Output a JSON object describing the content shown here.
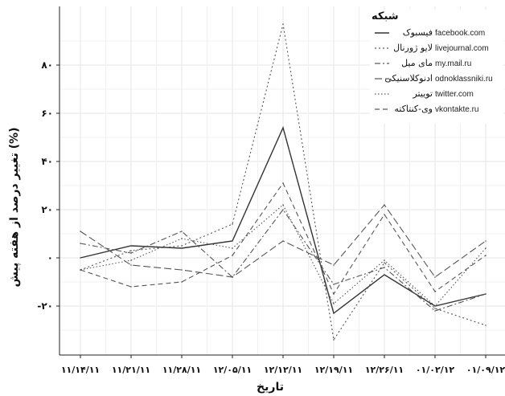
{
  "chart_data": {
    "type": "line",
    "ylabel": "تغییر درصد از هفته پیش (%)",
    "xlabel": "تاریخ",
    "ylim": [
      -40,
      98
    ],
    "yticks": [
      -20,
      0,
      20,
      40,
      60,
      80
    ],
    "ytick_labels": [
      "-۲۰",
      "۰",
      "۲۰",
      "۴۰",
      "۶۰",
      "۸۰"
    ],
    "categories": [
      "۱۱/۱۴/۱۱",
      "۱۱/۲۱/۱۱",
      "۱۱/۲۸/۱۱",
      "۱۲/۰۵/۱۱",
      "۱۲/۱۲/۱۱",
      "۱۲/۱۹/۱۱",
      "۱۲/۲۶/۱۱",
      "۰۱/۰۲/۱۲",
      "۰۱/۰۹/۱۲"
    ],
    "legend": {
      "title": "شبکه",
      "placement": "top-right"
    },
    "grid": true,
    "series": [
      {
        "name": "فیسبوک",
        "name_en": "facebook.com",
        "dash": "solid",
        "values": [
          0,
          5,
          4,
          7,
          54,
          -23,
          -7,
          -20,
          -15
        ]
      },
      {
        "name": "لایو ژورنال",
        "name_en": "livejournal.com",
        "dash": "dot",
        "values": [
          -5,
          3,
          5,
          14,
          97,
          -34,
          -2,
          -21,
          -28
        ]
      },
      {
        "name": "مای میل",
        "name_en": "my.mail.ru",
        "dash": "dashdot",
        "values": [
          6,
          2,
          11,
          -8,
          20,
          -11,
          -4,
          -22,
          -15
        ]
      },
      {
        "name": "ادنوکلاسنیکی",
        "name_en": "odnoklassniki.ru",
        "dash": "longdash",
        "values": [
          11,
          -3,
          -5,
          -8,
          7,
          -3,
          22,
          -8,
          7
        ]
      },
      {
        "name": "توییتر",
        "name_en": "twitter.com",
        "dash": "dot2",
        "values": [
          -5,
          -1,
          8,
          4,
          22,
          -19,
          -1,
          -20,
          4
        ]
      },
      {
        "name": "وی-کنتاکته",
        "name_en": "vkontakte.ru",
        "dash": "dash",
        "values": [
          -5,
          -12,
          -10,
          1,
          31,
          -15,
          18,
          -14,
          1
        ]
      }
    ]
  }
}
